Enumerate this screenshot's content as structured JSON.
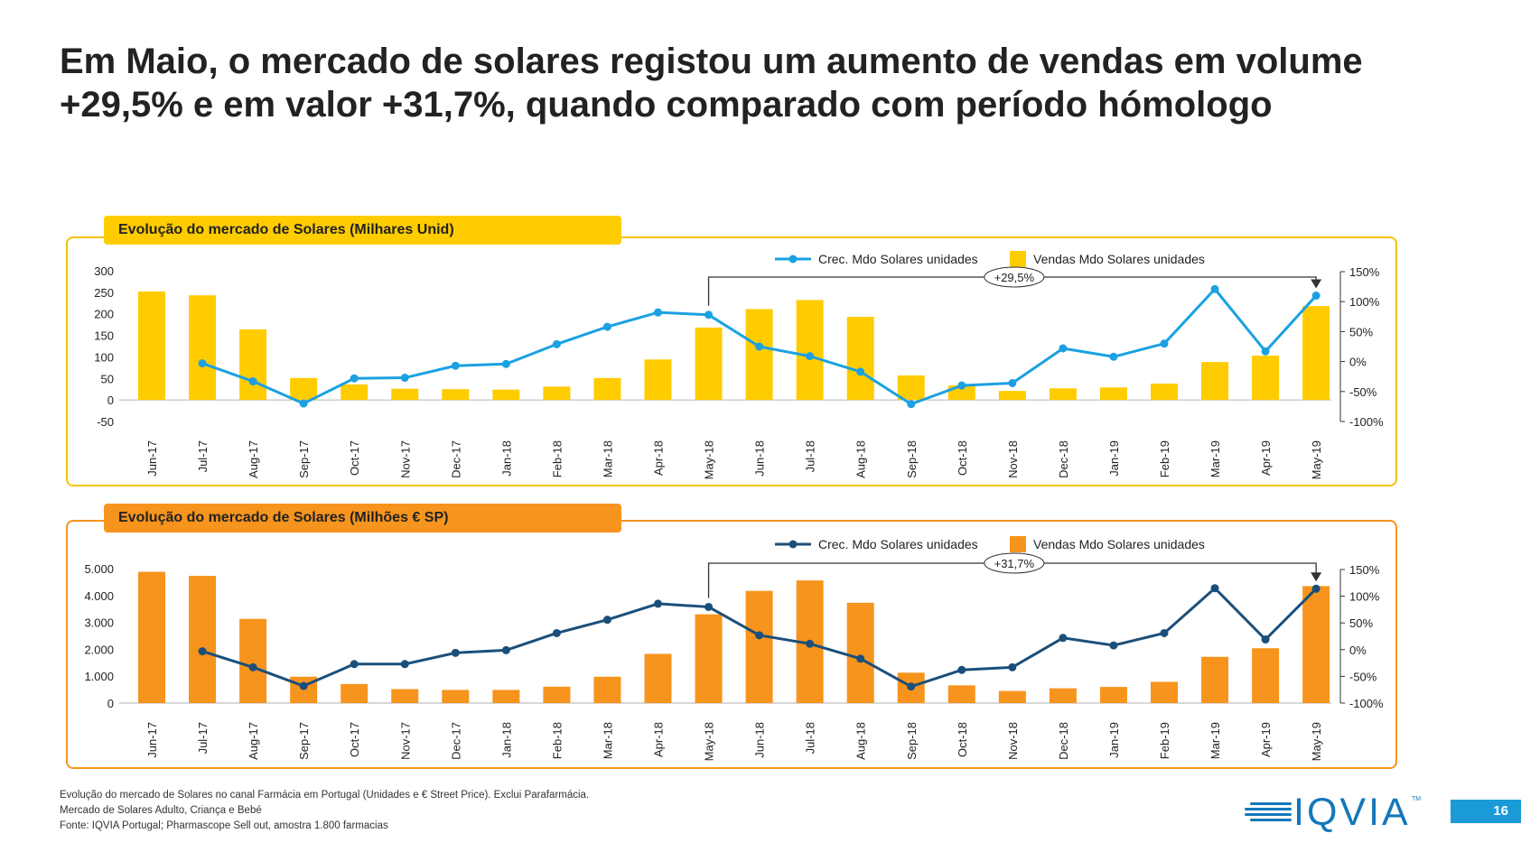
{
  "title": "Em Maio, o mercado de solares registou um aumento de vendas em volume +29,5% e em valor +31,7%, quando comparado com período hómologo",
  "colors": {
    "line": "#1ba1e2",
    "line_dark": "#1b4f7a",
    "bar_yellow": "#ffcc00",
    "bar_orange": "#f7941d"
  },
  "chart_data": [
    {
      "type": "bar",
      "title": "Evolução do mercado de Solares (Milhares Unid)",
      "categories": [
        "Jun-17",
        "Jul-17",
        "Aug-17",
        "Sep-17",
        "Oct-17",
        "Nov-17",
        "Dec-17",
        "Jan-18",
        "Feb-18",
        "Mar-18",
        "Apr-18",
        "May-18",
        "Jun-18",
        "Jul-18",
        "Aug-18",
        "Sep-18",
        "Oct-18",
        "Nov-18",
        "Dec-18",
        "Jan-19",
        "Feb-19",
        "Mar-19",
        "Apr-19",
        "May-19"
      ],
      "yticks": [
        "300",
        "250",
        "200",
        "150",
        "100",
        "50",
        "0",
        "-50"
      ],
      "y2ticks": [
        "150%",
        "100%",
        "50%",
        "0%",
        "-50%",
        "-100%"
      ],
      "ylim": [
        -50,
        300
      ],
      "y2lim": [
        -100,
        150
      ],
      "series": [
        {
          "name": "Vendas Mdo Solares unidades",
          "kind": "bar",
          "values": [
            252,
            243,
            164,
            51,
            36,
            26,
            25,
            24,
            31,
            51,
            94,
            168,
            211,
            232,
            193,
            57,
            34,
            21,
            27,
            29,
            38,
            88,
            103,
            218
          ]
        },
        {
          "name": "Crec. Mdo Solares unidades",
          "kind": "line",
          "axis": "secondary",
          "values": [
            null,
            -3,
            -33,
            -70,
            -28,
            -27,
            -7,
            -4,
            29,
            58,
            82,
            78,
            25,
            9,
            -17,
            -71,
            -40,
            -36,
            22,
            8,
            30,
            121,
            17,
            110
          ]
        }
      ],
      "annotation": "+29,5%",
      "legend": [
        "Crec. Mdo Solares unidades",
        "Vendas Mdo Solares unidades"
      ]
    },
    {
      "type": "bar",
      "title": "Evolução do mercado de Solares (Milhões € SP)",
      "categories": [
        "Jun-17",
        "Jul-17",
        "Aug-17",
        "Sep-17",
        "Oct-17",
        "Nov-17",
        "Dec-17",
        "Jan-18",
        "Feb-18",
        "Mar-18",
        "Apr-18",
        "May-18",
        "Jun-18",
        "Jul-18",
        "Aug-18",
        "Sep-18",
        "Oct-18",
        "Nov-18",
        "Dec-18",
        "Jan-19",
        "Feb-19",
        "Mar-19",
        "Apr-19",
        "May-19"
      ],
      "yticks": [
        "5.000",
        "4.000",
        "3.000",
        "2.000",
        "1.000",
        "0"
      ],
      "y2ticks": [
        "150%",
        "100%",
        "50%",
        "0%",
        "-50%",
        "-100%"
      ],
      "ylim": [
        0,
        5000
      ],
      "y2lim": [
        -100,
        150
      ],
      "series": [
        {
          "name": "Vendas Mdo Solares unidades",
          "kind": "bar",
          "values": [
            4880,
            4730,
            3130,
            980,
            710,
            520,
            490,
            490,
            610,
            980,
            1830,
            3300,
            4170,
            4560,
            3730,
            1130,
            660,
            450,
            550,
            600,
            790,
            1720,
            2040,
            4350
          ]
        },
        {
          "name": "Crec. Mdo Solares unidades",
          "kind": "line",
          "axis": "secondary",
          "values": [
            null,
            -3,
            -33,
            -68,
            -27,
            -27,
            -6,
            -1,
            31,
            56,
            86,
            80,
            27,
            11,
            -17,
            -69,
            -38,
            -33,
            22,
            8,
            31,
            115,
            19,
            114
          ]
        }
      ],
      "annotation": "+31,7%",
      "legend": [
        "Crec. Mdo Solares unidades",
        "Vendas Mdo Solares unidades"
      ]
    }
  ],
  "footer": {
    "line1": "Evolução do mercado de Solares no canal Farmácia em Portugal (Unidades e € Street Price). Exclui Parafarmácia.",
    "line2": "Mercado de Solares Adulto, Criança e Bebé",
    "line3": "Fonte: IQVIA Portugal; Pharmascope Sell out, amostra 1.800 farmacias"
  },
  "logo": {
    "text": "IQVIA",
    "tm": "TM",
    "icon": "iqvia-lines-icon"
  },
  "page_number": "16"
}
